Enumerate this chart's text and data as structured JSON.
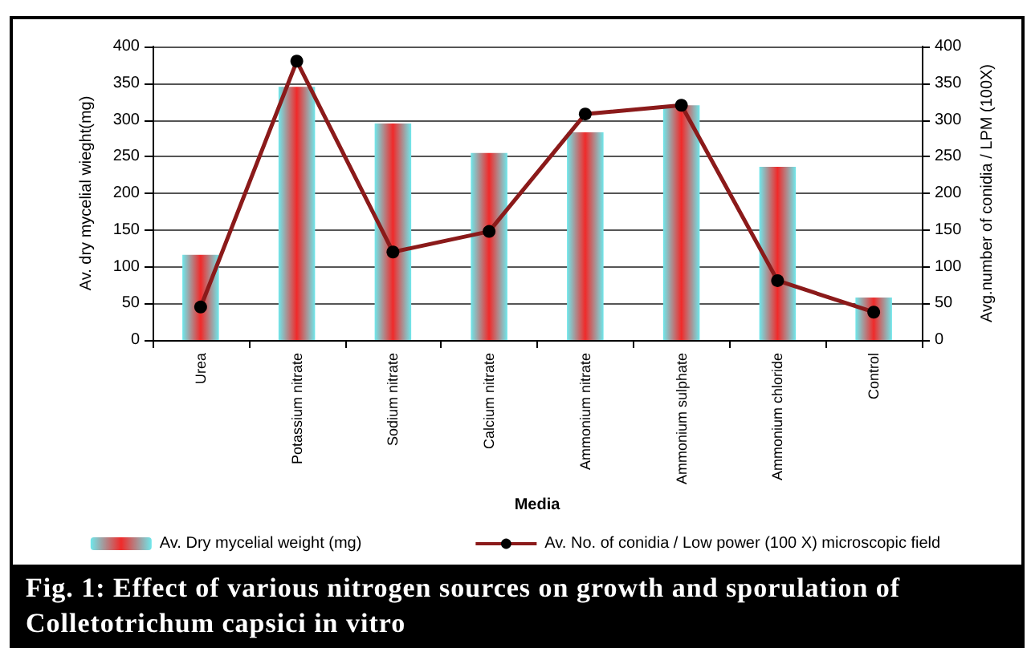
{
  "chart_data": {
    "type": "bar",
    "title": "Fig. 1:    Effect of various nitrogen sources on growth and sporulation of Colletotrichum capsici in vitro",
    "xlabel": "Media",
    "ylabel": "Av. dry mycelial wieght(mg)",
    "y2label": "Avg.number of conidia / LPM (100X)",
    "categories": [
      "Urea",
      "Potassium nitrate",
      "Sodium nitrate",
      "Calcium nitrate",
      "Ammonium nitrate",
      "Ammonium sulphate",
      "Ammonium chloride",
      "Control"
    ],
    "series": [
      {
        "name": "Av. Dry mycelial weight (mg)",
        "color": "#f02a2a",
        "values": [
          116,
          345,
          295,
          255,
          283,
          320,
          236,
          58
        ]
      },
      {
        "name": "Av. No. of conidia / Low power (100 X) microscopic field",
        "type": "line",
        "axis": "y2",
        "color": "#8b1a1a",
        "values": [
          45,
          380,
          120,
          148,
          308,
          320,
          81,
          38
        ]
      }
    ],
    "ylim": [
      0,
      400
    ],
    "yticks": [
      0,
      50,
      100,
      150,
      200,
      250,
      300,
      350,
      400
    ],
    "y2lim": [
      0,
      400
    ],
    "y2ticks": [
      0,
      50,
      100,
      150,
      200,
      250,
      300,
      350,
      400
    ],
    "grid": "y",
    "legend": "bottom",
    "marker": "circle",
    "line_style": "solid"
  }
}
